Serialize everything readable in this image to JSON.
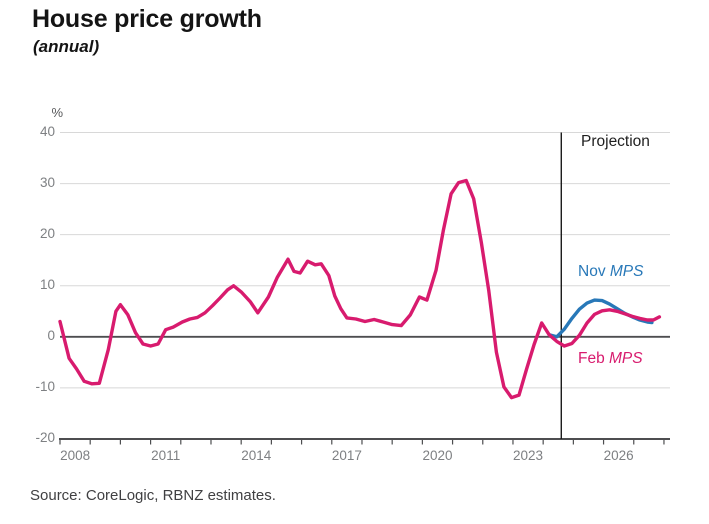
{
  "header": {
    "title": "House price growth",
    "subtitle": "(annual)"
  },
  "source": "Source: CoreLogic, RBNZ estimates.",
  "chart_data": {
    "type": "line",
    "title": "House price growth",
    "subtitle": "(annual)",
    "unit_label": "%",
    "projection_label": "Projection",
    "projection_start_year": 2024.6,
    "grid": true,
    "xlim": [
      2008,
      2028.2
    ],
    "ylim": [
      -20,
      40
    ],
    "x_axis": {
      "tick_start": 2008,
      "tick_end": 2028,
      "tick_interval": 1,
      "label_years": [
        2008,
        2011,
        2014,
        2017,
        2020,
        2023,
        2026
      ]
    },
    "y_axis": {
      "ticks": [
        40,
        30,
        20,
        10,
        0,
        -10,
        -20
      ],
      "zero_line": 0
    },
    "colors": {
      "feb_mps": "#d81b6e",
      "nov_mps": "#2878b8",
      "grid": "#d8d8d8",
      "axis": "#4d4e50",
      "projection_line": "#1a1a1a"
    },
    "series": [
      {
        "id": "nov_mps",
        "label_prefix": "Nov ",
        "label_italic": "MPS",
        "color_key": "nov_mps",
        "points": [
          [
            2024.2,
            0.4
          ],
          [
            2024.45,
            0.0
          ],
          [
            2024.7,
            1.5
          ],
          [
            2024.95,
            3.6
          ],
          [
            2025.2,
            5.4
          ],
          [
            2025.45,
            6.6
          ],
          [
            2025.7,
            7.2
          ],
          [
            2025.95,
            7.1
          ],
          [
            2026.2,
            6.4
          ],
          [
            2026.45,
            5.5
          ],
          [
            2026.7,
            4.6
          ],
          [
            2026.95,
            3.9
          ],
          [
            2027.2,
            3.3
          ],
          [
            2027.45,
            2.9
          ],
          [
            2027.6,
            2.8
          ]
        ]
      },
      {
        "id": "feb_mps",
        "label_prefix": "Feb ",
        "label_italic": "MPS",
        "color_key": "feb_mps",
        "points": [
          [
            2008.0,
            3.0
          ],
          [
            2008.3,
            -4.2
          ],
          [
            2008.55,
            -6.3
          ],
          [
            2008.8,
            -8.7
          ],
          [
            2009.05,
            -9.2
          ],
          [
            2009.3,
            -9.1
          ],
          [
            2009.6,
            -2.5
          ],
          [
            2009.85,
            5.0
          ],
          [
            2010.0,
            6.3
          ],
          [
            2010.25,
            4.3
          ],
          [
            2010.5,
            0.8
          ],
          [
            2010.75,
            -1.4
          ],
          [
            2011.0,
            -1.8
          ],
          [
            2011.25,
            -1.4
          ],
          [
            2011.5,
            1.4
          ],
          [
            2011.75,
            1.9
          ],
          [
            2012.05,
            2.9
          ],
          [
            2012.3,
            3.5
          ],
          [
            2012.55,
            3.8
          ],
          [
            2012.8,
            4.7
          ],
          [
            2013.05,
            6.1
          ],
          [
            2013.3,
            7.6
          ],
          [
            2013.55,
            9.2
          ],
          [
            2013.75,
            10.0
          ],
          [
            2014.0,
            8.8
          ],
          [
            2014.3,
            6.9
          ],
          [
            2014.55,
            4.7
          ],
          [
            2014.9,
            7.8
          ],
          [
            2015.2,
            11.7
          ],
          [
            2015.55,
            15.2
          ],
          [
            2015.75,
            12.8
          ],
          [
            2015.95,
            12.5
          ],
          [
            2016.2,
            14.8
          ],
          [
            2016.45,
            14.1
          ],
          [
            2016.65,
            14.3
          ],
          [
            2016.9,
            12.0
          ],
          [
            2017.1,
            8.0
          ],
          [
            2017.3,
            5.5
          ],
          [
            2017.5,
            3.7
          ],
          [
            2017.8,
            3.5
          ],
          [
            2018.1,
            3.0
          ],
          [
            2018.4,
            3.4
          ],
          [
            2018.7,
            2.9
          ],
          [
            2019.0,
            2.4
          ],
          [
            2019.3,
            2.2
          ],
          [
            2019.6,
            4.3
          ],
          [
            2019.9,
            7.8
          ],
          [
            2020.15,
            7.2
          ],
          [
            2020.45,
            13.0
          ],
          [
            2020.7,
            21.0
          ],
          [
            2020.95,
            28.0
          ],
          [
            2021.2,
            30.2
          ],
          [
            2021.45,
            30.6
          ],
          [
            2021.7,
            27.0
          ],
          [
            2021.95,
            18.5
          ],
          [
            2022.2,
            9.0
          ],
          [
            2022.45,
            -3.0
          ],
          [
            2022.7,
            -9.8
          ],
          [
            2022.95,
            -11.9
          ],
          [
            2023.2,
            -11.4
          ],
          [
            2023.45,
            -6.3
          ],
          [
            2023.7,
            -1.5
          ],
          [
            2023.95,
            2.7
          ],
          [
            2024.2,
            0.4
          ],
          [
            2024.45,
            -0.9
          ],
          [
            2024.7,
            -1.8
          ],
          [
            2024.95,
            -1.3
          ],
          [
            2025.2,
            0.3
          ],
          [
            2025.45,
            2.7
          ],
          [
            2025.7,
            4.4
          ],
          [
            2025.95,
            5.1
          ],
          [
            2026.2,
            5.3
          ],
          [
            2026.45,
            5.0
          ],
          [
            2026.7,
            4.5
          ],
          [
            2026.95,
            4.0
          ],
          [
            2027.2,
            3.6
          ],
          [
            2027.45,
            3.3
          ],
          [
            2027.65,
            3.3
          ],
          [
            2027.85,
            3.9
          ]
        ]
      }
    ]
  }
}
